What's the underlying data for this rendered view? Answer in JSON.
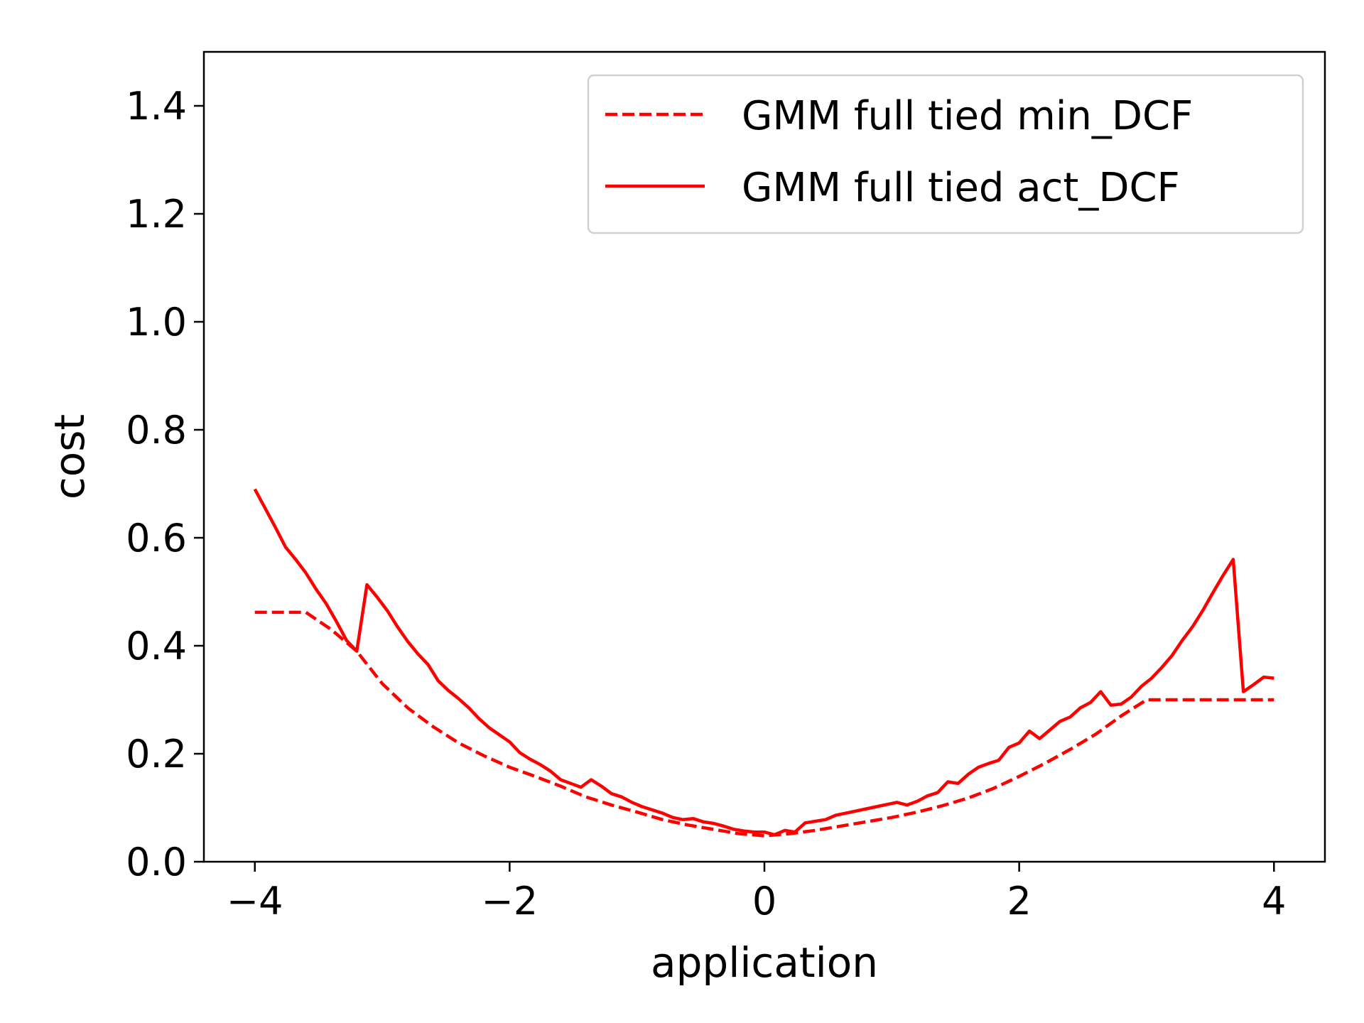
{
  "chart_data": {
    "type": "line",
    "title": "",
    "xlabel": "application",
    "ylabel": "cost",
    "xlim": [
      -4.4,
      4.4
    ],
    "ylim": [
      0.0,
      1.5
    ],
    "xticks": [
      -4,
      -2,
      0,
      2,
      4
    ],
    "xtick_labels": [
      "−4",
      "−2",
      "0",
      "2",
      "4"
    ],
    "yticks": [
      0.0,
      0.2,
      0.4,
      0.6,
      0.8,
      1.0,
      1.2,
      1.4
    ],
    "ytick_labels": [
      "0.0",
      "0.2",
      "0.4",
      "0.6",
      "0.8",
      "1.0",
      "1.2",
      "1.4"
    ],
    "grid": false,
    "legend_position": "top-right",
    "series": [
      {
        "name": "GMM full tied min_DCF",
        "color": "#ff0000",
        "style": "dashed",
        "x": [
          -4.0,
          -3.8,
          -3.6,
          -3.4,
          -3.2,
          -3.0,
          -2.8,
          -2.6,
          -2.4,
          -2.2,
          -2.0,
          -1.8,
          -1.6,
          -1.4,
          -1.2,
          -1.0,
          -0.8,
          -0.6,
          -0.4,
          -0.2,
          0.0,
          0.2,
          0.4,
          0.6,
          0.8,
          1.0,
          1.2,
          1.4,
          1.6,
          1.8,
          2.0,
          2.2,
          2.4,
          2.6,
          2.8,
          3.0,
          3.2,
          3.4,
          3.6,
          3.8,
          4.0
        ],
        "y": [
          0.462,
          0.462,
          0.462,
          0.43,
          0.39,
          0.33,
          0.285,
          0.25,
          0.22,
          0.196,
          0.175,
          0.158,
          0.14,
          0.12,
          0.105,
          0.092,
          0.078,
          0.068,
          0.06,
          0.052,
          0.048,
          0.052,
          0.058,
          0.066,
          0.074,
          0.082,
          0.092,
          0.104,
          0.118,
          0.136,
          0.158,
          0.182,
          0.208,
          0.236,
          0.27,
          0.3,
          0.3,
          0.3,
          0.3,
          0.3,
          0.3
        ]
      },
      {
        "name": "GMM full tied act_DCF",
        "color": "#ff0000",
        "style": "solid",
        "x": [
          -4.0,
          -3.92,
          -3.84,
          -3.76,
          -3.68,
          -3.6,
          -3.52,
          -3.44,
          -3.36,
          -3.28,
          -3.2,
          -3.12,
          -3.04,
          -2.96,
          -2.88,
          -2.8,
          -2.72,
          -2.64,
          -2.56,
          -2.48,
          -2.4,
          -2.32,
          -2.24,
          -2.16,
          -2.08,
          -2.0,
          -1.92,
          -1.84,
          -1.76,
          -1.68,
          -1.6,
          -1.52,
          -1.44,
          -1.36,
          -1.28,
          -1.2,
          -1.12,
          -1.04,
          -0.96,
          -0.88,
          -0.8,
          -0.72,
          -0.64,
          -0.56,
          -0.48,
          -0.4,
          -0.32,
          -0.24,
          -0.16,
          -0.08,
          0.0,
          0.08,
          0.16,
          0.24,
          0.32,
          0.4,
          0.48,
          0.56,
          0.64,
          0.72,
          0.8,
          0.88,
          0.96,
          1.04,
          1.12,
          1.2,
          1.28,
          1.36,
          1.44,
          1.52,
          1.6,
          1.68,
          1.76,
          1.84,
          1.92,
          2.0,
          2.08,
          2.16,
          2.24,
          2.32,
          2.4,
          2.48,
          2.56,
          2.64,
          2.72,
          2.8,
          2.88,
          2.96,
          3.04,
          3.12,
          3.2,
          3.28,
          3.36,
          3.44,
          3.52,
          3.6,
          3.68,
          3.76,
          3.84,
          3.92,
          4.0
        ],
        "y": [
          0.69,
          0.655,
          0.62,
          0.583,
          0.56,
          0.535,
          0.505,
          0.478,
          0.445,
          0.41,
          0.39,
          0.513,
          0.49,
          0.465,
          0.435,
          0.408,
          0.385,
          0.365,
          0.335,
          0.317,
          0.302,
          0.285,
          0.265,
          0.248,
          0.235,
          0.222,
          0.202,
          0.19,
          0.18,
          0.168,
          0.152,
          0.145,
          0.138,
          0.152,
          0.14,
          0.126,
          0.12,
          0.11,
          0.102,
          0.096,
          0.09,
          0.082,
          0.078,
          0.08,
          0.074,
          0.071,
          0.066,
          0.06,
          0.057,
          0.055,
          0.055,
          0.05,
          0.058,
          0.055,
          0.072,
          0.075,
          0.078,
          0.086,
          0.09,
          0.094,
          0.098,
          0.102,
          0.106,
          0.11,
          0.105,
          0.112,
          0.122,
          0.128,
          0.148,
          0.145,
          0.162,
          0.175,
          0.182,
          0.188,
          0.212,
          0.22,
          0.242,
          0.228,
          0.244,
          0.26,
          0.268,
          0.285,
          0.295,
          0.315,
          0.29,
          0.292,
          0.305,
          0.325,
          0.34,
          0.36,
          0.382,
          0.41,
          0.435,
          0.465,
          0.498,
          0.53,
          0.56,
          0.315,
          0.328,
          0.342,
          0.34
        ]
      }
    ]
  }
}
